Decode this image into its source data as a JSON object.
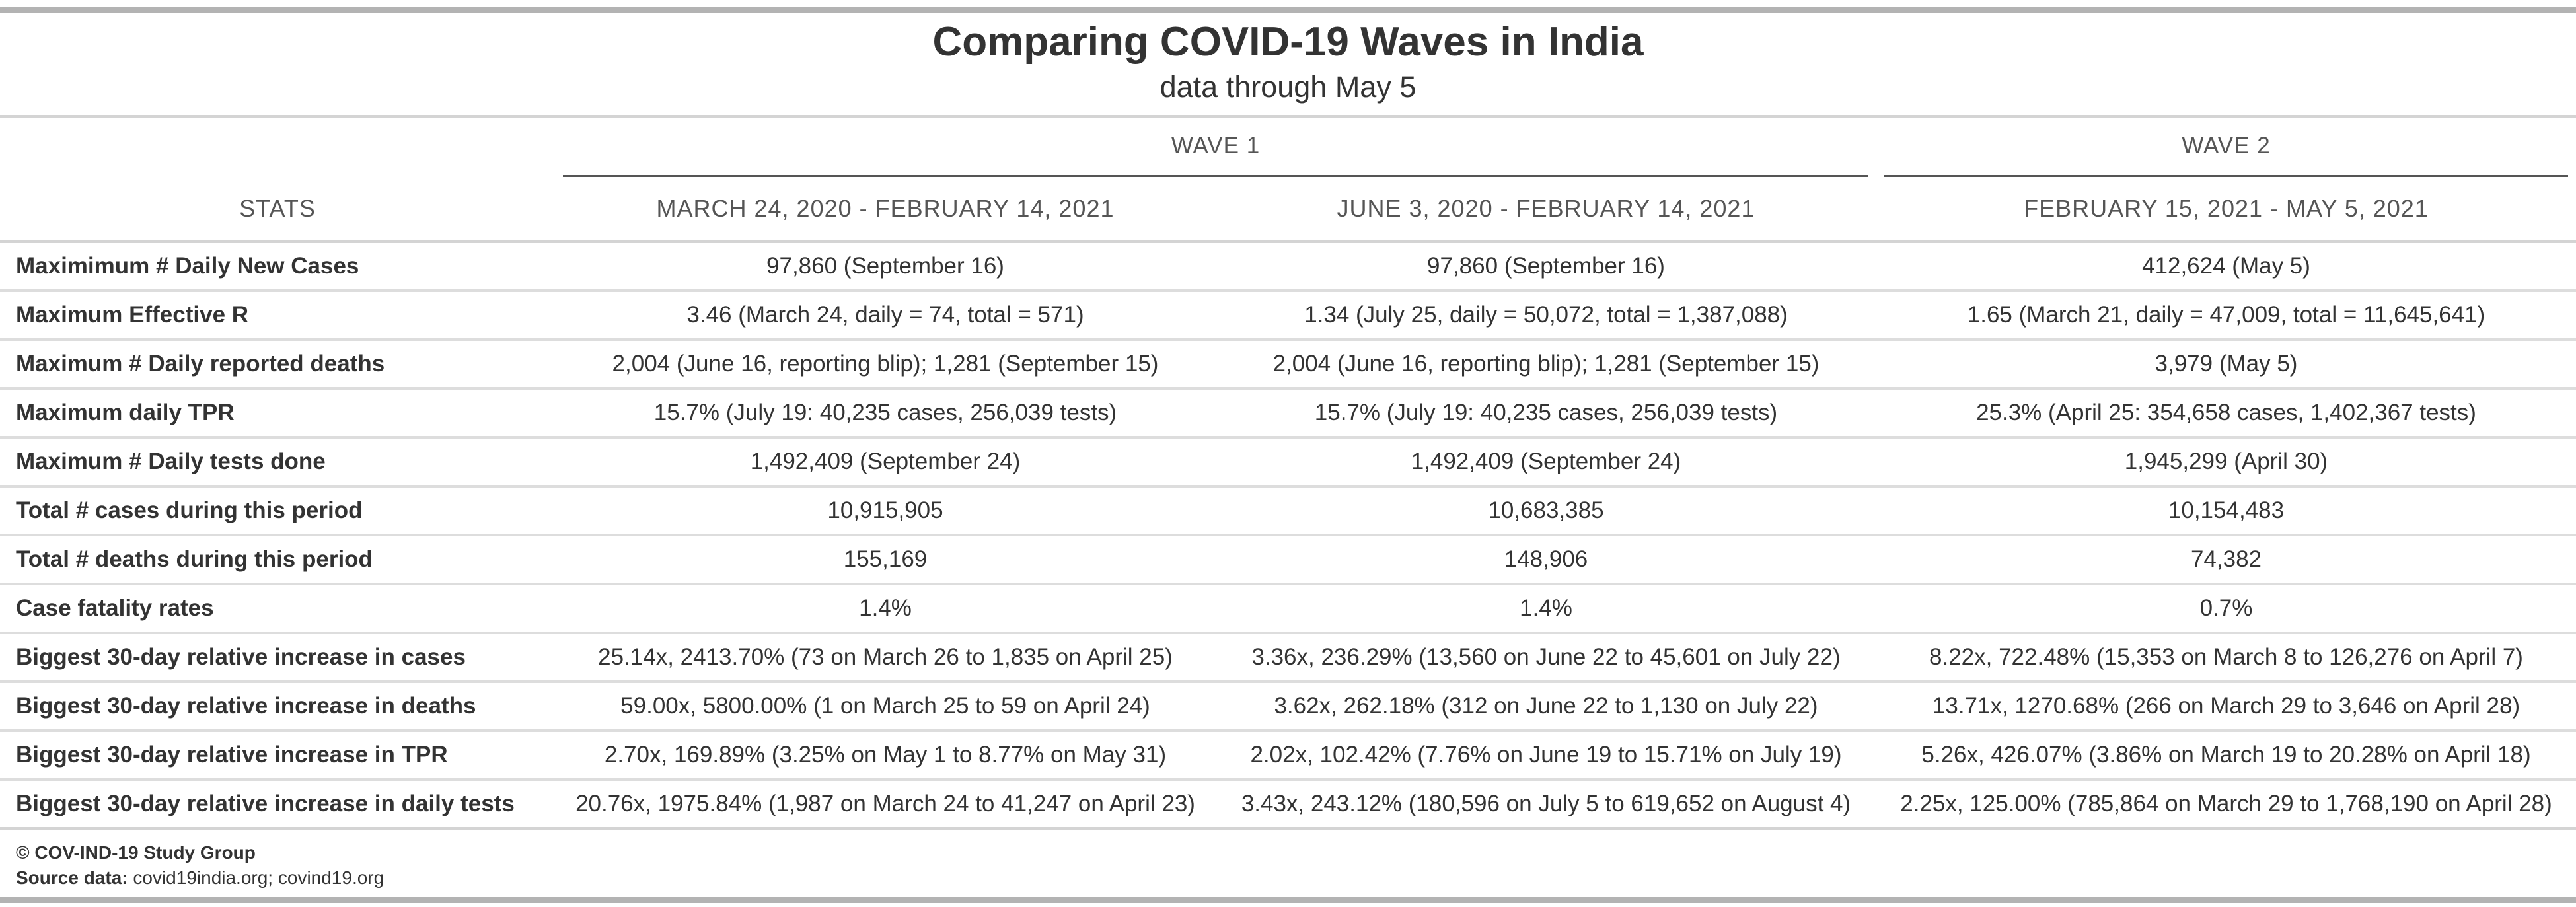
{
  "title": "Comparing COVID-19 Waves in India",
  "subtitle": "data through May 5",
  "spanners": {
    "wave1": "WAVE 1",
    "wave2": "WAVE 2"
  },
  "columns": [
    "STATS",
    "MARCH 24, 2020 - FEBRUARY 14, 2021",
    "JUNE 3, 2020 - FEBRUARY 14, 2021",
    "FEBRUARY 15, 2021 - MAY 5, 2021"
  ],
  "rows": [
    {
      "stat": "Maximimum # Daily New Cases",
      "values": [
        "97,860 (September 16)",
        "97,860 (September 16)",
        "412,624 (May 5)"
      ]
    },
    {
      "stat": "Maximum Effective R",
      "values": [
        "3.46 (March 24, daily = 74, total = 571)",
        "1.34 (July 25, daily = 50,072, total = 1,387,088)",
        "1.65 (March 21, daily = 47,009, total = 11,645,641)"
      ]
    },
    {
      "stat": "Maximum # Daily reported deaths",
      "values": [
        "2,004 (June 16, reporting blip); 1,281 (September 15)",
        "2,004 (June 16, reporting blip); 1,281 (September 15)",
        "3,979 (May 5)"
      ]
    },
    {
      "stat": "Maximum daily TPR",
      "values": [
        "15.7% (July 19: 40,235 cases, 256,039 tests)",
        "15.7% (July 19: 40,235 cases, 256,039 tests)",
        "25.3% (April 25: 354,658 cases, 1,402,367 tests)"
      ]
    },
    {
      "stat": "Maximum # Daily tests done",
      "values": [
        "1,492,409 (September 24)",
        "1,492,409 (September 24)",
        "1,945,299 (April 30)"
      ]
    },
    {
      "stat": "Total # cases during this period",
      "values": [
        "10,915,905",
        "10,683,385",
        "10,154,483"
      ]
    },
    {
      "stat": "Total # deaths during this period",
      "values": [
        "155,169",
        "148,906",
        "74,382"
      ]
    },
    {
      "stat": "Case fatality rates",
      "values": [
        "1.4%",
        "1.4%",
        "0.7%"
      ]
    },
    {
      "stat": "Biggest 30-day relative increase in cases",
      "values": [
        "25.14x, 2413.70% (73 on March 26 to 1,835 on April 25)",
        "3.36x, 236.29% (13,560 on June 22 to 45,601 on July 22)",
        "8.22x, 722.48% (15,353 on March 8 to 126,276 on April 7)"
      ]
    },
    {
      "stat": "Biggest 30-day relative increase in deaths",
      "values": [
        "59.00x, 5800.00% (1 on March 25 to 59 on April 24)",
        "3.62x, 262.18% (312 on June 22 to 1,130 on July 22)",
        "13.71x, 1270.68% (266 on March 29 to 3,646 on April 28)"
      ]
    },
    {
      "stat": "Biggest 30-day relative increase in TPR",
      "values": [
        "2.70x, 169.89% (3.25% on May 1 to 8.77% on May 31)",
        "2.02x, 102.42% (7.76% on June 19 to 15.71% on July 19)",
        "5.26x, 426.07% (3.86% on March 19 to 20.28% on April 18)"
      ]
    },
    {
      "stat": "Biggest 30-day relative increase in daily tests",
      "values": [
        "20.76x, 1975.84% (1,987 on March 24 to 41,247 on April 23)",
        "3.43x, 243.12% (180,596 on July 5 to 619,652 on August 4)",
        "2.25x, 125.00% (785,864 on March 29 to 1,768,190 on April 28)"
      ]
    }
  ],
  "footnotes": {
    "credit": "© COV-IND-19 Study Group",
    "source_label": "Source data:",
    "source_value": "covid19india.org; covind19.org"
  }
}
